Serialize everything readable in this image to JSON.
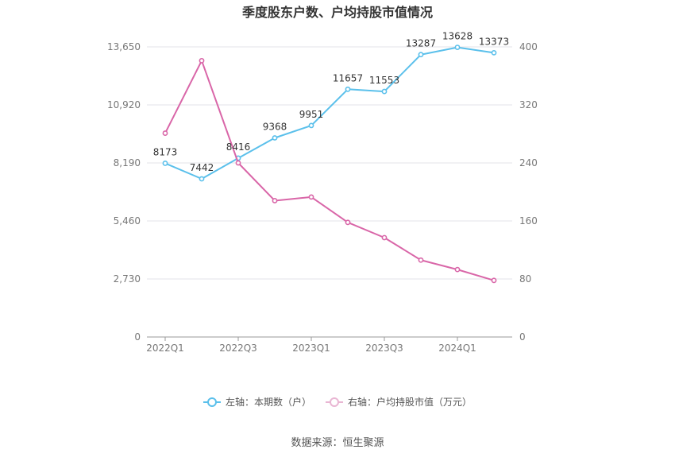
{
  "chart_data": {
    "type": "line",
    "title": "季度股东户数、户均持股市值情况",
    "x": [
      "2022Q1",
      "2022Q2",
      "2022Q3",
      "2022Q4",
      "2023Q1",
      "2023Q2",
      "2023Q3",
      "2023Q4",
      "2024Q1",
      "2024Q2"
    ],
    "x_tick_labels": [
      "2022Q1",
      "2022Q3",
      "2023Q1",
      "2023Q3",
      "2024Q1"
    ],
    "y_left_ticks": [
      "0",
      "2,730",
      "5,460",
      "8,190",
      "10,920",
      "13,650"
    ],
    "y_right_ticks": [
      "0",
      "80",
      "160",
      "240",
      "320",
      "400"
    ],
    "y_left_lim": [
      0,
      13650
    ],
    "y_right_lim": [
      0,
      400
    ],
    "grid": true,
    "legend_position": "bottom",
    "series": [
      {
        "name": "左轴：本期数（户）",
        "axis": "left",
        "color": "#5bc0eb",
        "values": [
          8173,
          7442,
          8416,
          9368,
          9951,
          11657,
          11553,
          13287,
          13628,
          13373
        ],
        "labels": [
          "8173",
          "7442",
          "8416",
          "9368",
          "9951",
          "11657",
          "11553",
          "13287",
          "13628",
          "13373"
        ]
      },
      {
        "name": "右轴：户均持股市值（万元）",
        "axis": "right",
        "color": "#d966a8",
        "values": [
          281,
          381,
          240,
          188,
          193,
          158,
          137,
          106,
          93,
          78
        ]
      }
    ]
  },
  "source_text": "数据来源：恒生聚源"
}
